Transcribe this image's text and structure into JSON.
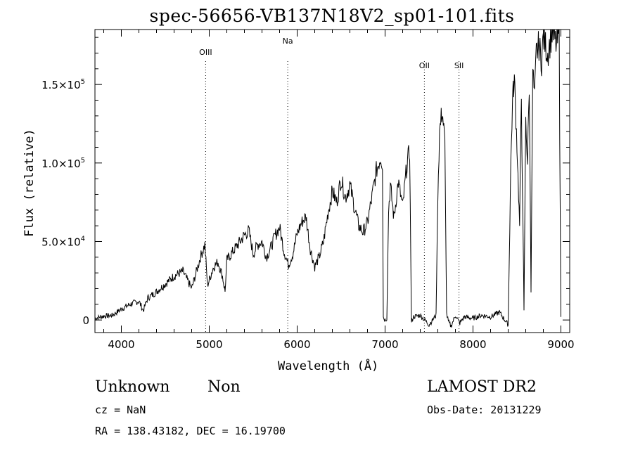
{
  "chart_data": {
    "type": "line",
    "title": "spec-56656-VB137N18V2_sp01-101.fits",
    "xlabel": "Wavelength (Å)",
    "ylabel": "Flux (relative)",
    "xlim": [
      3700,
      9100
    ],
    "ylim": [
      -8000,
      185000
    ],
    "x_ticks": [
      4000,
      5000,
      6000,
      7000,
      8000,
      9000
    ],
    "y_ticks": [
      {
        "value": 0,
        "label": "0"
      },
      {
        "value": 50000,
        "label": "5.0×10",
        "exp": "4"
      },
      {
        "value": 100000,
        "label": "1.0×10",
        "exp": "5"
      },
      {
        "value": 150000,
        "label": "1.5×10",
        "exp": "5"
      }
    ],
    "grid": false,
    "lines": [
      {
        "label": "OIII",
        "x": 4959
      },
      {
        "label": "Na",
        "x": 5893
      },
      {
        "label": "OII",
        "x": 7447
      },
      {
        "label": "SII",
        "x": 7841
      }
    ],
    "series": [
      {
        "x": [
          3700,
          3800,
          3900,
          4000,
          4100,
          4200,
          4250,
          4300,
          4400,
          4500,
          4600,
          4700,
          4800,
          4900,
          4950,
          4980,
          5050,
          5100,
          5150,
          5180,
          5200,
          5300,
          5400,
          5450,
          5500,
          5550,
          5600,
          5650,
          5700,
          5750,
          5800,
          5850,
          5900,
          5950,
          6000,
          6050,
          6100,
          6150,
          6200,
          6250,
          6300,
          6350,
          6400,
          6450,
          6500,
          6550,
          6600,
          6650,
          6700,
          6750,
          6800,
          6850,
          6900,
          6950,
          6970,
          6980,
          7000,
          7020,
          7040,
          7060,
          7100,
          7150,
          7200,
          7250,
          7280,
          7300,
          7320,
          7400,
          7500,
          7580,
          7600,
          7620,
          7650,
          7680,
          7700,
          7720,
          7750,
          7800,
          7850,
          7900,
          8000,
          8100,
          8200,
          8300,
          8400,
          8430,
          8450,
          8470,
          8500,
          8530,
          8550,
          8580,
          8600,
          8620,
          8640,
          8660,
          8680,
          8700,
          8720,
          8750,
          8780,
          8800,
          8850,
          8900,
          8950,
          8980,
          9000
        ],
        "y": [
          1000,
          2500,
          3000,
          7000,
          10000,
          12000,
          6000,
          14000,
          18000,
          23000,
          28000,
          31000,
          20000,
          40000,
          48000,
          22000,
          34000,
          37000,
          28000,
          18000,
          38000,
          46000,
          54000,
          57000,
          42000,
          48000,
          50000,
          40000,
          46000,
          54000,
          59000,
          44000,
          35000,
          42000,
          55000,
          62000,
          66000,
          45000,
          34000,
          40000,
          50000,
          68000,
          82000,
          75000,
          90000,
          78000,
          86000,
          72000,
          60000,
          56000,
          62000,
          78000,
          95000,
          104000,
          100000,
          2000,
          0,
          1000,
          70000,
          86000,
          65000,
          88000,
          72000,
          100000,
          108000,
          -2000,
          2000,
          3000,
          -3000,
          3000,
          80000,
          120000,
          134000,
          112000,
          4000,
          -1000,
          -4000,
          3000,
          -2000,
          2000,
          1000,
          3000,
          2000,
          5000,
          -3000,
          100000,
          140000,
          154000,
          112000,
          60000,
          142000,
          5000,
          130000,
          100000,
          150000,
          20000,
          160000,
          140000,
          170000,
          175000,
          165000,
          180000,
          170000,
          183000,
          175000,
          182000,
          2000
        ]
      }
    ]
  },
  "info": {
    "class": "Unknown",
    "subclass": "Non",
    "cz": "cz = NaN",
    "radec": "RA = 138.43182, DEC =  16.19700",
    "survey": "LAMOST DR2",
    "obs_date": "Obs-Date: 20131229"
  }
}
